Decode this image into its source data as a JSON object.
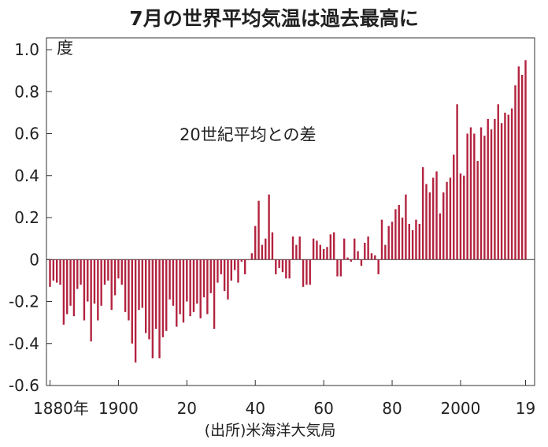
{
  "chart_data": {
    "type": "bar",
    "title": "7月の世界平均気温は過去最高に",
    "subtitle": "20世紀平均との差",
    "ylabel": "度",
    "source": "(出所)米海洋大気局",
    "ylim": [
      -0.6,
      1.0
    ],
    "yticks": [
      {
        "value": 1.0,
        "label": "1.0"
      },
      {
        "value": 0.8,
        "label": "0.8"
      },
      {
        "value": 0.6,
        "label": "0.6"
      },
      {
        "value": 0.4,
        "label": "0.4"
      },
      {
        "value": 0.2,
        "label": "0.2"
      },
      {
        "value": 0.0,
        "label": "0"
      },
      {
        "value": -0.2,
        "label": "-0.2"
      },
      {
        "value": -0.4,
        "label": "-0.4"
      },
      {
        "value": -0.6,
        "label": "-0.6"
      }
    ],
    "xticks": [
      {
        "year": 1880,
        "label": "1880年"
      },
      {
        "year": 1900,
        "label": "1900"
      },
      {
        "year": 1920,
        "label": "20"
      },
      {
        "year": 1940,
        "label": "40"
      },
      {
        "year": 1960,
        "label": "60"
      },
      {
        "year": 1980,
        "label": "80"
      },
      {
        "year": 2000,
        "label": "2000"
      },
      {
        "year": 2019,
        "label": "19"
      }
    ],
    "start_year": 1880,
    "end_year": 2019,
    "bar_color": "#b2233f",
    "values": [
      -0.13,
      -0.1,
      -0.11,
      -0.12,
      -0.31,
      -0.26,
      -0.22,
      -0.27,
      -0.14,
      -0.12,
      -0.29,
      -0.2,
      -0.39,
      -0.21,
      -0.29,
      -0.22,
      -0.12,
      -0.1,
      -0.24,
      -0.17,
      -0.09,
      -0.12,
      -0.25,
      -0.29,
      -0.4,
      -0.49,
      -0.24,
      -0.23,
      -0.35,
      -0.38,
      -0.47,
      -0.33,
      -0.47,
      -0.37,
      -0.34,
      -0.19,
      -0.22,
      -0.32,
      -0.26,
      -0.3,
      -0.2,
      -0.27,
      -0.25,
      -0.21,
      -0.28,
      -0.18,
      -0.26,
      -0.16,
      -0.33,
      -0.11,
      -0.07,
      -0.15,
      -0.19,
      -0.1,
      -0.05,
      -0.11,
      -0.01,
      -0.07,
      0.0,
      0.03,
      0.16,
      0.28,
      0.07,
      0.1,
      0.31,
      0.13,
      -0.07,
      -0.04,
      -0.06,
      -0.09,
      -0.09,
      0.11,
      0.07,
      0.11,
      -0.13,
      -0.12,
      -0.12,
      0.1,
      0.09,
      0.07,
      0.05,
      0.06,
      0.12,
      0.13,
      -0.08,
      -0.08,
      0.1,
      0.01,
      -0.01,
      0.1,
      0.04,
      -0.03,
      0.08,
      0.11,
      0.03,
      0.02,
      -0.07,
      0.19,
      0.07,
      0.16,
      0.18,
      0.24,
      0.26,
      0.2,
      0.31,
      0.17,
      0.14,
      0.19,
      0.17,
      0.44,
      0.36,
      0.32,
      0.39,
      0.42,
      0.22,
      0.32,
      0.37,
      0.39,
      0.5,
      0.74,
      0.41,
      0.4,
      0.6,
      0.63,
      0.6,
      0.47,
      0.63,
      0.59,
      0.67,
      0.62,
      0.67,
      0.74,
      0.65,
      0.7,
      0.69,
      0.72,
      0.83,
      0.92,
      0.88,
      0.95
    ]
  }
}
